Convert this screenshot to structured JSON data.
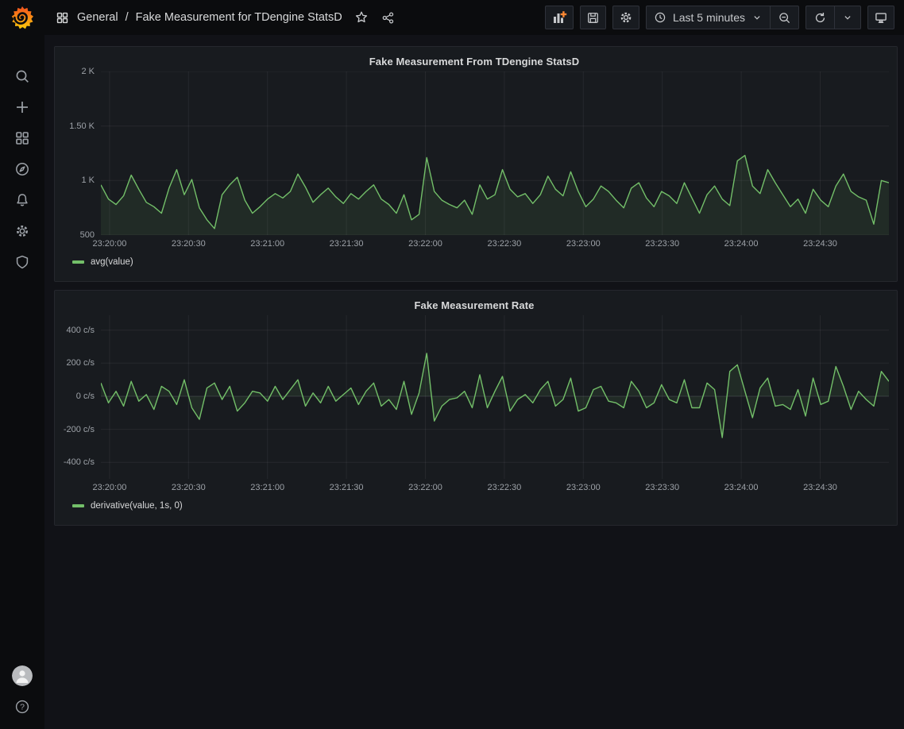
{
  "header": {
    "breadcrumb_section": "General",
    "breadcrumb_separator": "/",
    "breadcrumb_title": "Fake Measurement for TDengine StatsD",
    "time_range_label": "Last 5 minutes"
  },
  "sidebar": {
    "items": [
      {
        "id": "search",
        "icon": "search-icon"
      },
      {
        "id": "create",
        "icon": "plus-icon"
      },
      {
        "id": "dashboards",
        "icon": "dashboards-grid-icon"
      },
      {
        "id": "explore",
        "icon": "compass-icon"
      },
      {
        "id": "alerting",
        "icon": "bell-icon"
      },
      {
        "id": "configuration",
        "icon": "gear-icon"
      },
      {
        "id": "server-admin",
        "icon": "shield-icon"
      }
    ],
    "bottom_items": [
      {
        "id": "user-profile",
        "icon": "avatar"
      },
      {
        "id": "help",
        "icon": "question-circle-icon"
      }
    ]
  },
  "toolbar": {
    "buttons": [
      "add-panel",
      "save-dashboard",
      "dashboard-settings",
      "time-range-picker",
      "zoom-out-time-range",
      "refresh-dashboard",
      "refresh-interval",
      "cycle-view-mode"
    ],
    "accent_orange": "#ff8833"
  },
  "colors": {
    "series_green": "#73bf69",
    "panel_bg": "#181b1f",
    "canvas_bg": "#111217"
  },
  "chart_data": [
    {
      "type": "line",
      "title": "Fake Measurement From TDengine StatsD",
      "xlabel": "",
      "ylabel": "",
      "grid": true,
      "legend_position": "bottom-left",
      "ylim": [
        500,
        2000
      ],
      "fill_to": 500,
      "y_ticks": [
        {
          "value": 2000,
          "label": "2 K"
        },
        {
          "value": 1500,
          "label": "1.50 K"
        },
        {
          "value": 1000,
          "label": "1 K"
        },
        {
          "value": 500,
          "label": "500"
        }
      ],
      "x_tick_labels": [
        "23:20:00",
        "23:20:30",
        "23:21:00",
        "23:21:30",
        "23:22:00",
        "23:22:30",
        "23:23:00",
        "23:23:30",
        "23:24:00",
        "23:24:30"
      ],
      "series": [
        {
          "name": "avg(value)",
          "color": "#73bf69",
          "values": [
            960,
            830,
            780,
            860,
            1050,
            920,
            800,
            760,
            700,
            930,
            1100,
            870,
            1010,
            750,
            640,
            560,
            870,
            960,
            1030,
            820,
            700,
            760,
            830,
            880,
            840,
            900,
            1060,
            940,
            800,
            870,
            930,
            850,
            790,
            880,
            830,
            900,
            960,
            830,
            780,
            700,
            870,
            640,
            690,
            1210,
            900,
            820,
            780,
            750,
            820,
            690,
            960,
            830,
            870,
            1100,
            920,
            850,
            880,
            790,
            870,
            1040,
            920,
            860,
            1080,
            900,
            760,
            830,
            950,
            900,
            820,
            750,
            930,
            980,
            840,
            760,
            900,
            860,
            790,
            980,
            840,
            700,
            870,
            950,
            830,
            770,
            1180,
            1230,
            950,
            880,
            1100,
            980,
            870,
            760,
            830,
            700,
            920,
            820,
            760,
            950,
            1060,
            900,
            850,
            820,
            600,
            1000,
            980
          ]
        }
      ]
    },
    {
      "type": "line",
      "title": "Fake Measurement Rate",
      "xlabel": "",
      "ylabel": "",
      "grid": true,
      "legend_position": "bottom-left",
      "ylim": [
        -500,
        490
      ],
      "fill_to": 0,
      "y_ticks": [
        {
          "value": 400,
          "label": "400 c/s"
        },
        {
          "value": 200,
          "label": "200 c/s"
        },
        {
          "value": 0,
          "label": "0 c/s"
        },
        {
          "value": -200,
          "label": "-200 c/s"
        },
        {
          "value": -400,
          "label": "-400 c/s"
        }
      ],
      "x_tick_labels": [
        "23:20:00",
        "23:20:30",
        "23:21:00",
        "23:21:30",
        "23:22:00",
        "23:22:30",
        "23:23:00",
        "23:23:30",
        "23:24:00",
        "23:24:30"
      ],
      "series": [
        {
          "name": "derivative(value, 1s, 0)",
          "color": "#73bf69",
          "values": [
            80,
            -40,
            30,
            -60,
            90,
            -30,
            10,
            -80,
            60,
            30,
            -50,
            100,
            -70,
            -140,
            50,
            80,
            -20,
            60,
            -90,
            -40,
            30,
            20,
            -30,
            60,
            -20,
            40,
            100,
            -60,
            20,
            -40,
            60,
            -30,
            10,
            50,
            -50,
            30,
            80,
            -60,
            -20,
            -80,
            90,
            -110,
            20,
            260,
            -150,
            -60,
            -20,
            -10,
            30,
            -70,
            130,
            -70,
            30,
            120,
            -90,
            -20,
            10,
            -40,
            40,
            90,
            -60,
            -20,
            110,
            -90,
            -70,
            40,
            60,
            -30,
            -40,
            -70,
            90,
            30,
            -70,
            -40,
            70,
            -20,
            -40,
            100,
            -70,
            -70,
            80,
            40,
            -250,
            150,
            190,
            30,
            -130,
            50,
            110,
            -60,
            -50,
            -80,
            40,
            -120,
            110,
            -50,
            -30,
            180,
            60,
            -80,
            30,
            -20,
            -60,
            150,
            90
          ]
        }
      ]
    }
  ]
}
